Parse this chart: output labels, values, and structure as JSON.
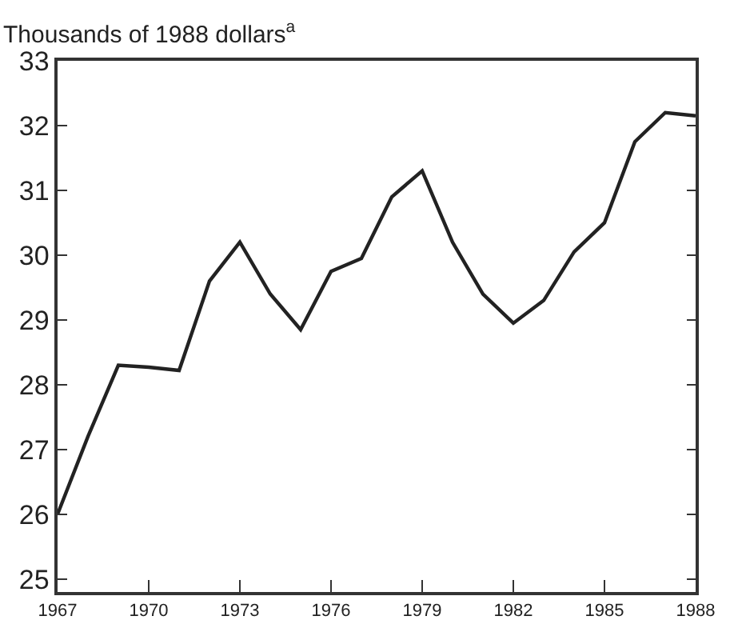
{
  "chart_data": {
    "type": "line",
    "ylabel": "Thousands of 1988 dollars$^{a}$",
    "x": [
      1967,
      1968,
      1969,
      1970,
      1971,
      1972,
      1973,
      1974,
      1975,
      1976,
      1977,
      1978,
      1979,
      1980,
      1981,
      1982,
      1983,
      1984,
      1985,
      1986,
      1987,
      1988
    ],
    "series": [
      {
        "color": "#222222",
        "values": [
          26.0,
          27.2,
          28.3,
          28.27,
          28.22,
          29.6,
          30.2,
          29.4,
          28.85,
          29.75,
          29.95,
          30.9,
          31.3,
          30.2,
          29.4,
          28.95,
          29.3,
          30.05,
          30.5,
          31.75,
          32.2,
          32.15
        ]
      }
    ],
    "xlim": [
      1967,
      1988
    ],
    "xticks": [
      1967,
      1970,
      1973,
      1976,
      1979,
      1982,
      1985,
      1988
    ],
    "ylim": [
      24.8,
      33
    ],
    "yticks": [
      25,
      26,
      27,
      28,
      29,
      30,
      31,
      32,
      33
    ],
    "marker": "none",
    "line_style": "solid"
  }
}
